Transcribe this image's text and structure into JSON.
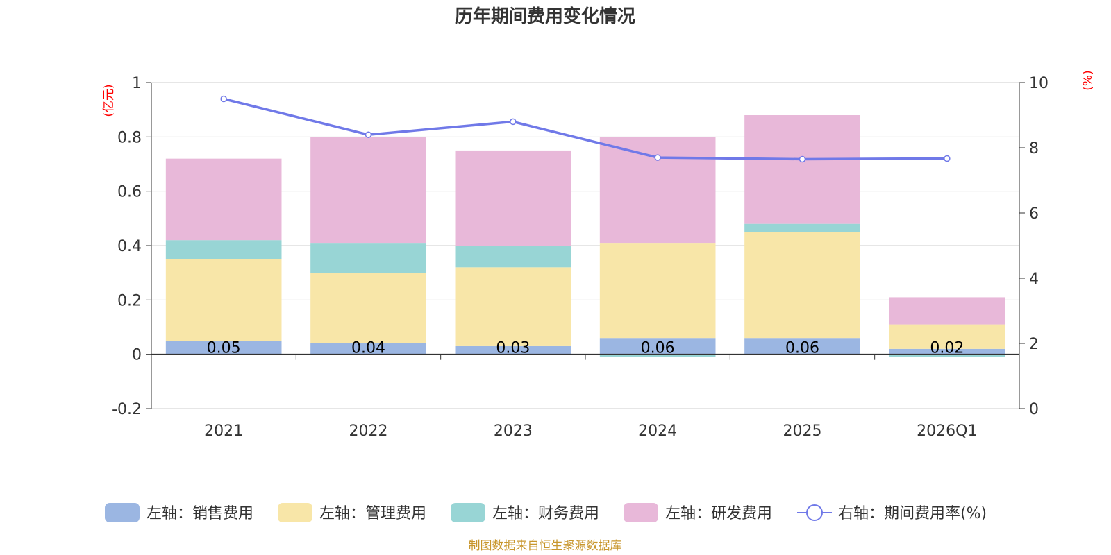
{
  "chart_data": {
    "type": "bar",
    "title": "历年期间费用变化情况",
    "categories": [
      "2021",
      "2022",
      "2023",
      "2024",
      "2025",
      "2026Q1"
    ],
    "left_axis": {
      "unit": "(亿元)",
      "ylim": [
        -0.2,
        1
      ],
      "ticks": [
        "-0.2",
        "0",
        "0.2",
        "0.4",
        "0.6",
        "0.8",
        "1"
      ]
    },
    "right_axis": {
      "unit": "(%)",
      "ylim": [
        0,
        10
      ],
      "ticks": [
        "0",
        "2",
        "4",
        "6",
        "8",
        "10"
      ]
    },
    "series": [
      {
        "name": "左轴：销售费用",
        "axis": "left",
        "color": "#9bb6e2",
        "values": [
          0.05,
          0.04,
          0.03,
          0.06,
          0.06,
          0.02
        ]
      },
      {
        "name": "左轴：管理费用",
        "axis": "left",
        "color": "#f8e6a8",
        "values": [
          0.3,
          0.26,
          0.29,
          0.35,
          0.39,
          0.09
        ]
      },
      {
        "name": "左轴：财务费用",
        "axis": "left",
        "color": "#98d5d5",
        "values": [
          0.07,
          0.11,
          0.08,
          -0.01,
          0.03,
          -0.01
        ]
      },
      {
        "name": "左轴：研发费用",
        "axis": "left",
        "color": "#e8b8d9",
        "values": [
          0.3,
          0.39,
          0.35,
          0.39,
          0.4,
          0.1
        ]
      },
      {
        "name": "右轴：期间费用率(%)",
        "axis": "right",
        "type": "line",
        "color": "#7079e8",
        "values": [
          9.5,
          8.4,
          8.8,
          7.7,
          7.65,
          7.67
        ]
      }
    ],
    "data_labels": [
      "0.05",
      "0.04",
      "0.03",
      "0.06",
      "0.06",
      "0.02"
    ],
    "legend_position": "bottom",
    "grid": true
  },
  "source_text": "制图数据来自恒生聚源数据库"
}
